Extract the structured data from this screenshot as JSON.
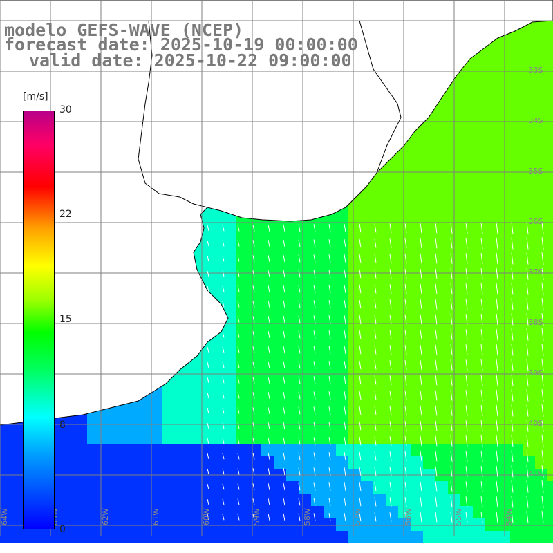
{
  "title": {
    "line1": "modelo GEFS-WAVE (NCEP)",
    "line2": "forecast date: 2025-10-19 00:00:00",
    "line3": "valid date: 2025-10-22 09:00:00"
  },
  "colorbar": {
    "units": "[m/s]",
    "ticks": [
      "30",
      "22",
      "15",
      "8",
      "0"
    ],
    "tick_values": [
      30,
      22,
      15,
      8,
      0
    ],
    "range": [
      0,
      30
    ],
    "colors": [
      "#0000ff",
      "#00a0ff",
      "#00ffff",
      "#00ff60",
      "#00ff00",
      "#a0ff00",
      "#ffff00",
      "#ffa000",
      "#ff0000",
      "#ff0066",
      "#b80088"
    ]
  },
  "map": {
    "variable": "wind speed and direction",
    "field_colors": {
      "calm": "#0033ff",
      "light": "#00aaff",
      "moderate": "#00ffcc",
      "fresh": "#00ff44",
      "strong": "#66ff00"
    },
    "land_color": "#ffffff",
    "coastline_color": "#000000",
    "grid_color": "#7f7f7f",
    "vector_color": "#ffffff",
    "right_latitude_labels": [
      "33S",
      "34S",
      "35S",
      "36S",
      "37S",
      "38S",
      "39S",
      "40S",
      "41S"
    ],
    "bottom_longitude_labels": [
      "64W",
      "63W",
      "62W",
      "61W",
      "60W",
      "59W",
      "58W",
      "57W",
      "56W",
      "55W",
      "54W"
    ]
  }
}
